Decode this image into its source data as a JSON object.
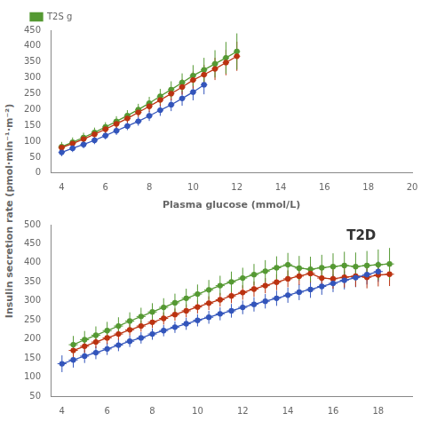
{
  "chart_data": [
    {
      "type": "line",
      "xlabel": "Plasma glucose (mmol/L)",
      "ylabel": "Insulin secretion rate (pmol·min⁻¹·m⁻²)",
      "xlim": [
        3.5,
        20
      ],
      "xticks": [
        4,
        6,
        8,
        10,
        12,
        14,
        16,
        18,
        20
      ],
      "ylim": [
        0,
        450
      ],
      "yticks": [
        0,
        50,
        100,
        150,
        200,
        250,
        300,
        350,
        400,
        450
      ],
      "grid": false,
      "legend": "upper left",
      "marker": "o",
      "line_style": "solid",
      "series": [
        {
          "color": "#3355bb",
          "x": [
            4,
            4.5,
            5,
            5.5,
            6,
            6.5,
            7,
            7.5,
            8,
            8.5,
            9,
            9.5,
            10,
            10.5
          ],
          "values": [
            65,
            78,
            90,
            103,
            118,
            133,
            148,
            163,
            180,
            198,
            215,
            235,
            255,
            278
          ],
          "yerr": [
            12,
            12,
            12,
            12,
            12,
            13,
            13,
            14,
            16,
            18,
            20,
            23,
            26,
            30
          ],
          "xerr": [
            0.15,
            0.15,
            0.15,
            0.15,
            0.15,
            0.15,
            0.15,
            0.15,
            0.15,
            0.15,
            0.15,
            0.15,
            0.15,
            0.15
          ]
        },
        {
          "color": "#bb3311",
          "x": [
            4,
            4.5,
            5,
            5.5,
            6,
            6.5,
            7,
            7.5,
            8,
            8.5,
            9,
            9.5,
            10,
            10.5,
            11,
            11.5,
            12
          ],
          "values": [
            80,
            93,
            107,
            122,
            138,
            155,
            172,
            191,
            210,
            230,
            250,
            271,
            293,
            310,
            328,
            348,
            368
          ],
          "yerr": [
            12,
            12,
            12,
            12,
            12,
            13,
            14,
            15,
            17,
            19,
            21,
            24,
            27,
            31,
            35,
            40,
            46
          ],
          "xerr": [
            0.15,
            0.15,
            0.15,
            0.15,
            0.15,
            0.15,
            0.15,
            0.15,
            0.15,
            0.15,
            0.15,
            0.15,
            0.15,
            0.15,
            0.15,
            0.15,
            0.15
          ]
        },
        {
          "name": "T2S g",
          "color": "#559933",
          "x": [
            4,
            4.5,
            5,
            5.5,
            6,
            6.5,
            7,
            7.5,
            8,
            8.5,
            9,
            9.5,
            10,
            10.5,
            11,
            11.5,
            12
          ],
          "values": [
            83,
            97,
            112,
            128,
            145,
            163,
            181,
            200,
            220,
            242,
            263,
            285,
            307,
            325,
            344,
            363,
            383
          ],
          "yerr": [
            15,
            15,
            15,
            15,
            15,
            16,
            17,
            18,
            20,
            23,
            26,
            29,
            33,
            38,
            43,
            50,
            57
          ],
          "xerr": [
            0.15,
            0.15,
            0.15,
            0.15,
            0.15,
            0.15,
            0.15,
            0.15,
            0.15,
            0.15,
            0.15,
            0.15,
            0.15,
            0.15,
            0.15,
            0.15,
            0.15
          ]
        }
      ]
    },
    {
      "type": "line",
      "annotations": [
        {
          "text": "T2D"
        }
      ],
      "xlim": [
        3.5,
        19.5
      ],
      "xticks": [
        4,
        6,
        8,
        10,
        12,
        14,
        16,
        18
      ],
      "ylim": [
        50,
        500
      ],
      "yticks": [
        50,
        100,
        150,
        200,
        250,
        300,
        350,
        400,
        450,
        500
      ],
      "grid": false,
      "marker": "o",
      "line_style": "solid",
      "series": [
        {
          "color": "#3355bb",
          "x": [
            4,
            4.5,
            5,
            5.5,
            6,
            6.5,
            7,
            7.5,
            8,
            8.5,
            9,
            9.5,
            10,
            10.5,
            11,
            11.5,
            12,
            12.5,
            13,
            13.5,
            14,
            14.5,
            15,
            15.5,
            16,
            16.5,
            17,
            17.5,
            18
          ],
          "values": [
            135,
            145,
            155,
            164,
            174,
            184,
            194,
            203,
            213,
            222,
            231,
            240,
            249,
            257,
            266,
            274,
            283,
            291,
            299,
            307,
            315,
            323,
            330,
            338,
            346,
            354,
            361,
            369,
            377
          ],
          "yerr": [
            22,
            20,
            18,
            17,
            16,
            16,
            15,
            15,
            15,
            15,
            15,
            16,
            16,
            17,
            17,
            18,
            18,
            19,
            19,
            20,
            20,
            21,
            22,
            22,
            23,
            24,
            25,
            26,
            27
          ],
          "xerr": [
            0.2,
            0.2,
            0.2,
            0.2,
            0.2,
            0.2,
            0.2,
            0.2,
            0.2,
            0.2,
            0.2,
            0.2,
            0.2,
            0.2,
            0.2,
            0.2,
            0.2,
            0.2,
            0.2,
            0.2,
            0.2,
            0.2,
            0.2,
            0.2,
            0.2,
            0.2,
            0.2,
            0.2,
            0.2
          ]
        },
        {
          "color": "#bb3311",
          "x": [
            4.5,
            5,
            5.5,
            6,
            6.5,
            7,
            7.5,
            8,
            8.5,
            9,
            9.5,
            10,
            10.5,
            11,
            11.5,
            12,
            12.5,
            13,
            13.5,
            14,
            14.5,
            15,
            15.5,
            16,
            16.5,
            17,
            17.5,
            18,
            18.5
          ],
          "values": [
            170,
            181,
            192,
            203,
            213,
            224,
            234,
            244,
            254,
            264,
            274,
            284,
            294,
            303,
            313,
            322,
            331,
            340,
            349,
            358,
            365,
            372,
            360,
            358,
            362,
            365,
            362,
            368,
            370
          ],
          "yerr": [
            18,
            17,
            16,
            16,
            15,
            15,
            15,
            15,
            16,
            16,
            17,
            17,
            18,
            18,
            19,
            19,
            20,
            20,
            21,
            22,
            23,
            24,
            25,
            26,
            27,
            28,
            29,
            30,
            31
          ],
          "xerr": [
            0.2,
            0.2,
            0.2,
            0.2,
            0.2,
            0.2,
            0.2,
            0.2,
            0.2,
            0.2,
            0.2,
            0.2,
            0.2,
            0.2,
            0.2,
            0.2,
            0.2,
            0.2,
            0.2,
            0.2,
            0.2,
            0.2,
            0.2,
            0.2,
            0.2,
            0.2,
            0.2,
            0.2,
            0.2
          ]
        },
        {
          "color": "#559933",
          "x": [
            4.5,
            5,
            5.5,
            6,
            6.5,
            7,
            7.5,
            8,
            8.5,
            9,
            9.5,
            10,
            10.5,
            11,
            11.5,
            12,
            12.5,
            13,
            13.5,
            14,
            14.5,
            15,
            15.5,
            16,
            16.5,
            17,
            17.5,
            18,
            18.5
          ],
          "values": [
            185,
            198,
            210,
            222,
            234,
            247,
            259,
            271,
            283,
            295,
            307,
            318,
            329,
            340,
            350,
            360,
            369,
            378,
            387,
            395,
            386,
            383,
            387,
            390,
            393,
            390,
            393,
            395,
            397
          ],
          "yerr": [
            23,
            23,
            23,
            23,
            23,
            23,
            23,
            23,
            24,
            24,
            25,
            25,
            26,
            26,
            27,
            27,
            28,
            29,
            30,
            31,
            32,
            33,
            34,
            35,
            36,
            37,
            38,
            40,
            42
          ],
          "xerr": [
            0.2,
            0.2,
            0.2,
            0.2,
            0.2,
            0.2,
            0.2,
            0.2,
            0.2,
            0.2,
            0.2,
            0.2,
            0.2,
            0.2,
            0.2,
            0.2,
            0.2,
            0.2,
            0.2,
            0.2,
            0.2,
            0.2,
            0.2,
            0.2,
            0.2,
            0.2,
            0.2,
            0.2,
            0.2
          ]
        }
      ]
    }
  ]
}
